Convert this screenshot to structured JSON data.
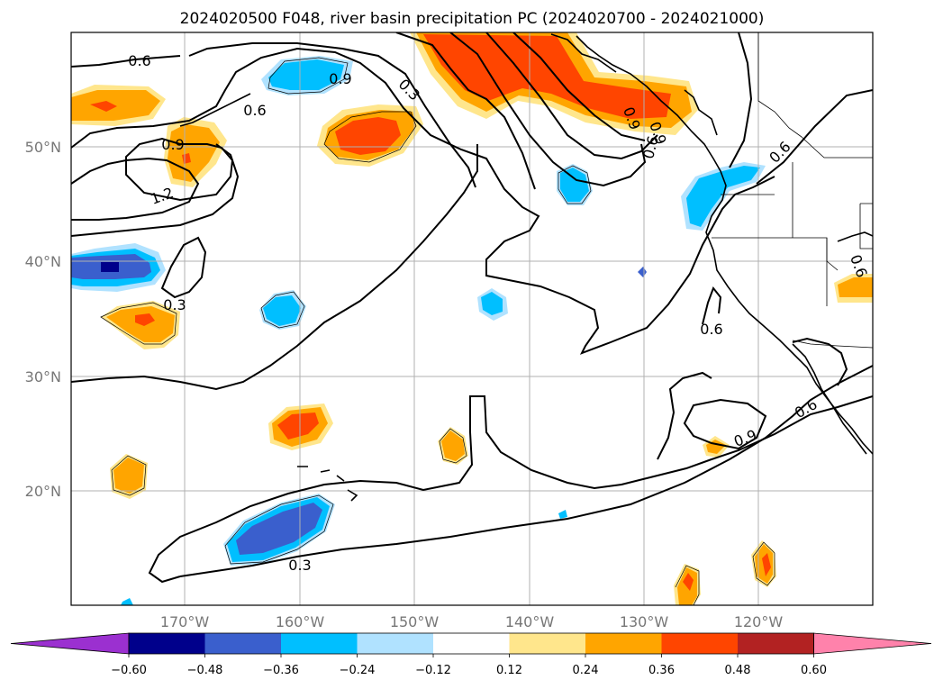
{
  "title": "2024020500 F048, river basin precipitation PC (2024020700 - 2024021000)",
  "lat_labels": [
    "50°N",
    "40°N",
    "30°N",
    "20°N"
  ],
  "lon_labels": [
    "170°W",
    "160°W",
    "150°W",
    "140°W",
    "130°W",
    "120°W"
  ],
  "contour_labels": [
    "0.6",
    "0.9",
    "0.3",
    "0.6",
    "0.9",
    "1.2",
    "0.3",
    "0.9",
    "0.6",
    "0.9",
    "0.6",
    "0.6",
    "0.6",
    "0.9",
    "0.3"
  ],
  "colorbar": {
    "tick_labels": [
      "−0.60",
      "−0.48",
      "−0.36",
      "−0.24",
      "−0.12",
      "0.12",
      "0.24",
      "0.36",
      "0.48",
      "0.60"
    ],
    "colors": [
      "#9b30d0",
      "#00008b",
      "#3a5fcd",
      "#00bfff",
      "#b0e2ff",
      "#ffffff",
      "#ffe68c",
      "#ffa500",
      "#ff4500",
      "#b22222",
      "#ff82ab"
    ]
  },
  "palette": {
    "pos_light": "#ffe68c",
    "pos_mid": "#ffa500",
    "pos_strong": "#ff4500",
    "pos_max": "#b22222",
    "neg_light": "#b0e2ff",
    "neg_mid": "#00bfff",
    "neg_strong": "#3a5fcd",
    "neg_max": "#00008b",
    "grid": "#b0b0b0",
    "contour": "#000000"
  }
}
